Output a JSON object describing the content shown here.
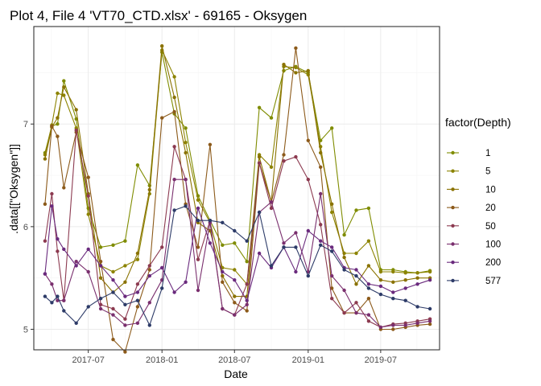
{
  "chart_data": {
    "type": "line",
    "title": "Plot 4, File 4 'VT70_CTD.xlsx' - 69165  -  Oksygen",
    "xlabel": "Date",
    "ylabel": ".data[[\"Oksygen\"]]",
    "xlim": [
      "2017-02-15",
      "2019-11-25"
    ],
    "ylim": [
      4.8,
      7.95
    ],
    "x_ticks": [
      {
        "date": "2017-07-01",
        "label": "2017-07"
      },
      {
        "date": "2018-01-01",
        "label": "2018-01"
      },
      {
        "date": "2018-07-01",
        "label": "2018-07"
      },
      {
        "date": "2019-01-01",
        "label": "2019-01"
      },
      {
        "date": "2019-07-01",
        "label": "2019-07"
      }
    ],
    "y_ticks": [
      5,
      6,
      7
    ],
    "grid": true,
    "legend": {
      "title": "factor(Depth)",
      "position": "right"
    },
    "x": [
      "2017-03-15",
      "2017-04-01",
      "2017-04-15",
      "2017-05-01",
      "2017-06-01",
      "2017-07-01",
      "2017-08-01",
      "2017-09-01",
      "2017-10-01",
      "2017-11-01",
      "2017-12-01",
      "2018-01-01",
      "2018-02-01",
      "2018-03-01",
      "2018-04-01",
      "2018-05-01",
      "2018-06-01",
      "2018-07-01",
      "2018-08-01",
      "2018-09-01",
      "2018-10-01",
      "2018-11-01",
      "2018-12-01",
      "2019-01-01",
      "2019-02-01",
      "2019-03-01",
      "2019-04-01",
      "2019-05-01",
      "2019-06-01",
      "2019-07-01",
      "2019-08-01",
      "2019-09-01",
      "2019-10-01",
      "2019-11-01"
    ],
    "series": [
      {
        "name": "1",
        "color": "#7f8c00",
        "values": [
          6.72,
          6.98,
          7.0,
          7.42,
          7.05,
          6.18,
          5.8,
          5.82,
          5.86,
          6.6,
          6.4,
          7.7,
          7.1,
          6.96,
          6.3,
          6.06,
          5.82,
          5.84,
          5.66,
          7.16,
          7.06,
          7.52,
          7.56,
          7.5,
          6.84,
          6.96,
          5.92,
          6.16,
          6.18,
          5.58,
          5.58,
          5.56,
          5.55,
          5.57
        ]
      },
      {
        "name": "5",
        "color": "#8c8300",
        "values": [
          6.7,
          6.99,
          7.3,
          7.28,
          6.96,
          6.12,
          5.62,
          5.56,
          5.62,
          5.68,
          6.32,
          7.72,
          7.46,
          6.82,
          6.26,
          6.04,
          5.6,
          5.58,
          5.44,
          6.7,
          6.58,
          7.56,
          7.55,
          7.48,
          6.78,
          6.14,
          5.74,
          5.74,
          5.86,
          5.56,
          5.56,
          5.55,
          5.55,
          5.56
        ]
      },
      {
        "name": "10",
        "color": "#8a7200",
        "values": [
          6.66,
          6.97,
          7.06,
          7.36,
          7.14,
          6.32,
          5.5,
          5.36,
          5.46,
          5.74,
          6.36,
          7.76,
          7.26,
          6.72,
          6.04,
          5.96,
          5.52,
          5.32,
          5.32,
          6.68,
          6.24,
          7.58,
          7.5,
          7.52,
          6.72,
          6.22,
          5.7,
          5.44,
          5.62,
          5.48,
          5.46,
          5.48,
          5.5,
          5.5
        ]
      },
      {
        "name": "20",
        "color": "#8c5a1a",
        "values": [
          6.22,
          6.98,
          6.88,
          6.38,
          6.92,
          6.48,
          5.66,
          4.9,
          4.78,
          5.22,
          5.58,
          7.06,
          7.12,
          6.22,
          5.8,
          6.8,
          5.46,
          5.26,
          5.18,
          6.62,
          6.24,
          6.7,
          7.74,
          6.84,
          6.58,
          5.4,
          5.16,
          5.16,
          5.3,
          5.0,
          5.0,
          5.02,
          5.04,
          5.05
        ]
      },
      {
        "name": "50",
        "color": "#8c3a50",
        "values": [
          5.86,
          6.32,
          5.76,
          5.28,
          6.94,
          6.3,
          5.24,
          5.2,
          5.1,
          5.44,
          5.62,
          5.8,
          6.78,
          6.46,
          5.68,
          6.06,
          5.2,
          5.14,
          5.44,
          6.62,
          6.18,
          6.64,
          6.68,
          6.46,
          6.02,
          5.3,
          5.16,
          5.26,
          5.08,
          5.02,
          5.05,
          5.06,
          5.08,
          5.1
        ]
      },
      {
        "name": "100",
        "color": "#7a2f6e",
        "values": [
          5.54,
          5.44,
          5.28,
          5.28,
          5.66,
          5.56,
          5.2,
          5.14,
          5.04,
          5.06,
          5.26,
          5.48,
          6.46,
          6.46,
          5.38,
          6.04,
          5.2,
          5.14,
          5.24,
          6.14,
          6.24,
          5.84,
          5.94,
          5.56,
          6.32,
          5.52,
          5.38,
          5.16,
          5.14,
          5.02,
          5.04,
          5.04,
          5.06,
          5.08
        ]
      },
      {
        "name": "200",
        "color": "#6a2a7d",
        "values": [
          5.54,
          6.2,
          5.88,
          5.78,
          5.62,
          5.78,
          5.62,
          5.48,
          5.32,
          5.36,
          5.52,
          5.6,
          5.36,
          5.46,
          6.18,
          5.84,
          5.56,
          5.48,
          5.28,
          5.74,
          5.6,
          5.8,
          5.56,
          5.96,
          5.86,
          5.8,
          5.6,
          5.58,
          5.44,
          5.42,
          5.36,
          5.4,
          5.44,
          5.48
        ]
      },
      {
        "name": "577",
        "color": "#2d3b68",
        "values": [
          5.32,
          5.26,
          5.32,
          5.18,
          5.06,
          5.22,
          5.3,
          5.36,
          5.24,
          5.28,
          5.04,
          5.4,
          6.16,
          6.2,
          6.06,
          6.06,
          6.04,
          5.96,
          5.86,
          6.14,
          5.62,
          5.8,
          5.8,
          5.52,
          5.82,
          5.76,
          5.58,
          5.52,
          5.4,
          5.34,
          5.3,
          5.28,
          5.22,
          5.2
        ]
      }
    ]
  }
}
